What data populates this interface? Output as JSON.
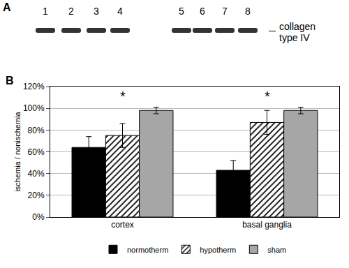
{
  "blot": {
    "panel_label": "A",
    "lanes": [
      "1",
      "2",
      "3",
      "4",
      "5",
      "6",
      "7",
      "8"
    ],
    "band_label": "collagen type IV"
  },
  "chart_data": {
    "panel_label": "B",
    "type": "bar",
    "y_label": "ischemia / nonischemia",
    "categories": [
      "cortex",
      "basal ganglia"
    ],
    "series": [
      {
        "name": "normotherm",
        "color": "#000000",
        "values": [
          64,
          43
        ],
        "error": [
          10,
          9
        ]
      },
      {
        "name": "hypotherm",
        "color": "#ffffff",
        "marker": "hatched",
        "values": [
          75,
          87
        ],
        "error": [
          11,
          11
        ]
      },
      {
        "name": "sham",
        "color": "#a6a6a6",
        "values": [
          98,
          98
        ],
        "error": [
          3,
          3
        ]
      }
    ],
    "annotations": [
      {
        "text": "*",
        "category": "cortex",
        "y": 111
      },
      {
        "text": "*",
        "category": "basal ganglia",
        "y": 111
      }
    ],
    "ylim": [
      0,
      120
    ],
    "yticks": [
      {
        "value": 0,
        "label": "0%"
      },
      {
        "value": 20,
        "label": "20%"
      },
      {
        "value": 40,
        "label": "40%"
      },
      {
        "value": 60,
        "label": "60%"
      },
      {
        "value": 80,
        "label": "80%"
      },
      {
        "value": 100,
        "label": "100%"
      },
      {
        "value": 120,
        "label": "120%"
      }
    ],
    "grid": true,
    "legend": "bottom"
  }
}
